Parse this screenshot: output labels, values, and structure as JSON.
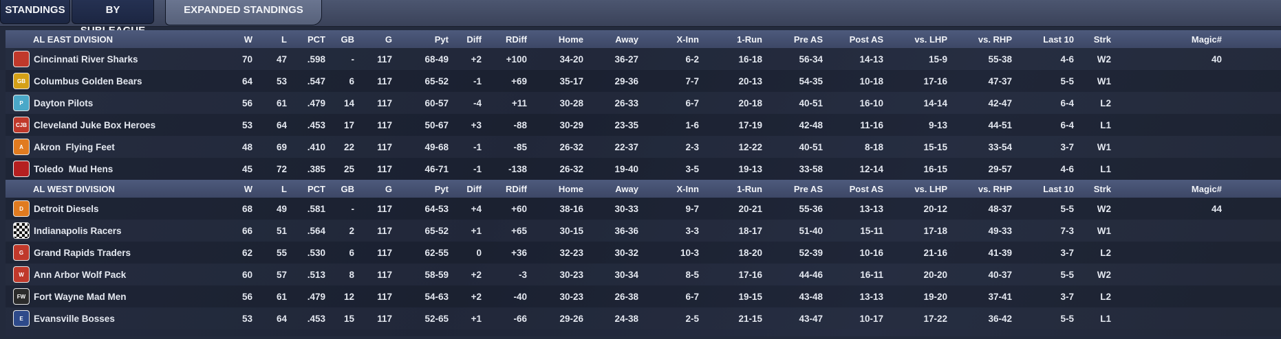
{
  "tabs": [
    {
      "label": "STANDINGS",
      "active": false
    },
    {
      "label": "BY SUBLEAGUE",
      "active": false
    },
    {
      "label": "EXPANDED STANDINGS",
      "active": true
    }
  ],
  "columns": [
    "W",
    "L",
    "PCT",
    "GB",
    "G",
    "Pyt",
    "Diff",
    "RDiff",
    "Home",
    "Away",
    "X-Inn",
    "1-Run",
    "Pre AS",
    "Post AS",
    "vs. LHP",
    "vs. RHP",
    "Last 10",
    "Strk",
    "Magic#"
  ],
  "divisions": [
    {
      "name": "AL EAST DIVISION",
      "teams": [
        {
          "name": "Cincinnati River Sharks",
          "logo": "shark-logo-icon",
          "color": "#c0392b",
          "W": "70",
          "L": "47",
          "PCT": ".598",
          "GB": "-",
          "G": "117",
          "Pyt": "68-49",
          "Diff": "+2",
          "RDiff": "+100",
          "Home": "34-20",
          "Away": "36-27",
          "XInn": "6-2",
          "OneRun": "16-18",
          "PreAS": "56-34",
          "PostAS": "14-13",
          "vsLHP": "15-9",
          "vsRHP": "55-38",
          "Last10": "4-6",
          "Strk": "W2",
          "Magic": "40"
        },
        {
          "name": "Columbus Golden Bears",
          "logo": "bear-logo-icon",
          "color": "#d4a017",
          "W": "64",
          "L": "53",
          "PCT": ".547",
          "GB": "6",
          "G": "117",
          "Pyt": "65-52",
          "Diff": "-1",
          "RDiff": "+69",
          "Home": "35-17",
          "Away": "29-36",
          "XInn": "7-7",
          "OneRun": "20-13",
          "PreAS": "54-35",
          "PostAS": "10-18",
          "vsLHP": "17-16",
          "vsRHP": "47-37",
          "Last10": "5-5",
          "Strk": "W1",
          "Magic": ""
        },
        {
          "name": "Dayton Pilots",
          "logo": "pilot-logo-icon",
          "color": "#4aa8c8",
          "W": "56",
          "L": "61",
          "PCT": ".479",
          "GB": "14",
          "G": "117",
          "Pyt": "60-57",
          "Diff": "-4",
          "RDiff": "+11",
          "Home": "30-28",
          "Away": "26-33",
          "XInn": "6-7",
          "OneRun": "20-18",
          "PreAS": "40-51",
          "PostAS": "16-10",
          "vsLHP": "14-14",
          "vsRHP": "42-47",
          "Last10": "6-4",
          "Strk": "L2",
          "Magic": ""
        },
        {
          "name": "Cleveland Juke Box Heroes",
          "logo": "jukebox-logo-icon",
          "color": "#c0392b",
          "W": "53",
          "L": "64",
          "PCT": ".453",
          "GB": "17",
          "G": "117",
          "Pyt": "50-67",
          "Diff": "+3",
          "RDiff": "-88",
          "Home": "30-29",
          "Away": "23-35",
          "XInn": "1-6",
          "OneRun": "17-19",
          "PreAS": "42-48",
          "PostAS": "11-16",
          "vsLHP": "9-13",
          "vsRHP": "44-51",
          "Last10": "6-4",
          "Strk": "L1",
          "Magic": ""
        },
        {
          "name": "Akron  Flying Feet",
          "logo": "feet-logo-icon",
          "color": "#e07b20",
          "W": "48",
          "L": "69",
          "PCT": ".410",
          "GB": "22",
          "G": "117",
          "Pyt": "49-68",
          "Diff": "-1",
          "RDiff": "-85",
          "Home": "26-32",
          "Away": "22-37",
          "XInn": "2-3",
          "OneRun": "12-22",
          "PreAS": "40-51",
          "PostAS": "8-18",
          "vsLHP": "15-15",
          "vsRHP": "33-54",
          "Last10": "3-7",
          "Strk": "W1",
          "Magic": ""
        },
        {
          "name": "Toledo  Mud Hens",
          "logo": "hen-logo-icon",
          "color": "#b52020",
          "W": "45",
          "L": "72",
          "PCT": ".385",
          "GB": "25",
          "G": "117",
          "Pyt": "46-71",
          "Diff": "-1",
          "RDiff": "-138",
          "Home": "26-32",
          "Away": "19-40",
          "XInn": "3-5",
          "OneRun": "19-13",
          "PreAS": "33-58",
          "PostAS": "12-14",
          "vsLHP": "16-15",
          "vsRHP": "29-57",
          "Last10": "4-6",
          "Strk": "L1",
          "Magic": ""
        }
      ]
    },
    {
      "name": "AL WEST DIVISION",
      "teams": [
        {
          "name": "Detroit Diesels",
          "logo": "diesel-logo-icon",
          "color": "#e07b20",
          "W": "68",
          "L": "49",
          "PCT": ".581",
          "GB": "-",
          "G": "117",
          "Pyt": "64-53",
          "Diff": "+4",
          "RDiff": "+60",
          "Home": "38-16",
          "Away": "30-33",
          "XInn": "9-7",
          "OneRun": "20-21",
          "PreAS": "55-36",
          "PostAS": "13-13",
          "vsLHP": "20-12",
          "vsRHP": "48-37",
          "Last10": "5-5",
          "Strk": "W2",
          "Magic": "44"
        },
        {
          "name": "Indianapolis Racers",
          "logo": "racer-logo-icon",
          "color": "#eeeeee",
          "W": "66",
          "L": "51",
          "PCT": ".564",
          "GB": "2",
          "G": "117",
          "Pyt": "65-52",
          "Diff": "+1",
          "RDiff": "+65",
          "Home": "30-15",
          "Away": "36-36",
          "XInn": "3-3",
          "OneRun": "18-17",
          "PreAS": "51-40",
          "PostAS": "15-11",
          "vsLHP": "17-18",
          "vsRHP": "49-33",
          "Last10": "7-3",
          "Strk": "W1",
          "Magic": ""
        },
        {
          "name": "Grand Rapids Traders",
          "logo": "trader-logo-icon",
          "color": "#c0392b",
          "W": "62",
          "L": "55",
          "PCT": ".530",
          "GB": "6",
          "G": "117",
          "Pyt": "62-55",
          "Diff": "0",
          "RDiff": "+36",
          "Home": "32-23",
          "Away": "30-32",
          "XInn": "10-3",
          "OneRun": "18-20",
          "PreAS": "52-39",
          "PostAS": "10-16",
          "vsLHP": "21-16",
          "vsRHP": "41-39",
          "Last10": "3-7",
          "Strk": "L2",
          "Magic": ""
        },
        {
          "name": "Ann Arbor Wolf Pack",
          "logo": "wolf-logo-icon",
          "color": "#c0392b",
          "W": "60",
          "L": "57",
          "PCT": ".513",
          "GB": "8",
          "G": "117",
          "Pyt": "58-59",
          "Diff": "+2",
          "RDiff": "-3",
          "Home": "30-23",
          "Away": "30-34",
          "XInn": "8-5",
          "OneRun": "17-16",
          "PreAS": "44-46",
          "PostAS": "16-11",
          "vsLHP": "20-20",
          "vsRHP": "40-37",
          "Last10": "5-5",
          "Strk": "W2",
          "Magic": ""
        },
        {
          "name": "Fort Wayne Mad Men",
          "logo": "madmen-logo-icon",
          "color": "#2b2b2b",
          "W": "56",
          "L": "61",
          "PCT": ".479",
          "GB": "12",
          "G": "117",
          "Pyt": "54-63",
          "Diff": "+2",
          "RDiff": "-40",
          "Home": "30-23",
          "Away": "26-38",
          "XInn": "6-7",
          "OneRun": "19-15",
          "PreAS": "43-48",
          "PostAS": "13-13",
          "vsLHP": "19-20",
          "vsRHP": "37-41",
          "Last10": "3-7",
          "Strk": "L2",
          "Magic": ""
        },
        {
          "name": "Evansville Bosses",
          "logo": "boss-logo-icon",
          "color": "#2e4a8a",
          "W": "53",
          "L": "64",
          "PCT": ".453",
          "GB": "15",
          "G": "117",
          "Pyt": "52-65",
          "Diff": "+1",
          "RDiff": "-66",
          "Home": "29-26",
          "Away": "24-38",
          "XInn": "2-5",
          "OneRun": "21-15",
          "PreAS": "43-47",
          "PostAS": "10-17",
          "vsLHP": "17-22",
          "vsRHP": "36-42",
          "Last10": "5-5",
          "Strk": "L1",
          "Magic": ""
        }
      ]
    }
  ],
  "logo_text": {
    "shark-logo-icon": "",
    "bear-logo-icon": "GB",
    "pilot-logo-icon": "P",
    "jukebox-logo-icon": "CJB",
    "feet-logo-icon": "A",
    "hen-logo-icon": "",
    "diesel-logo-icon": "D",
    "racer-logo-icon": "",
    "trader-logo-icon": "G",
    "wolf-logo-icon": "W",
    "madmen-logo-icon": "FW",
    "boss-logo-icon": "E"
  }
}
